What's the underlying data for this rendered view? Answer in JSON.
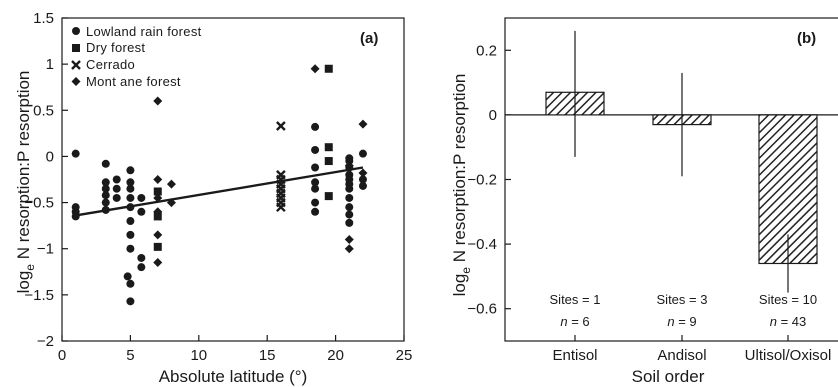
{
  "chart_data": [
    {
      "type": "scatter",
      "panel_label": "(a)",
      "xlabel": "Absolute latitude (°)",
      "ylabel": {
        "pre": "log",
        "sub": "e",
        "post": " N resorption:P resorption"
      },
      "xlim": [
        0,
        25
      ],
      "ylim": [
        -2,
        1.5
      ],
      "xticks": [
        "0",
        "5",
        "10",
        "15",
        "20",
        "25"
      ],
      "yticks": [
        "−2",
        "−1.5",
        "−1",
        "−0.5",
        "0",
        "0.5",
        "1",
        "1.5"
      ],
      "legend_position": "top-left",
      "series": [
        {
          "name": "Lowland rain forest",
          "marker": "circle",
          "points": [
            [
              1,
              0.03
            ],
            [
              1,
              -0.55
            ],
            [
              1,
              -0.6
            ],
            [
              1,
              -0.65
            ],
            [
              3.2,
              -0.08
            ],
            [
              3.2,
              -0.28
            ],
            [
              3.2,
              -0.35
            ],
            [
              3.2,
              -0.42
            ],
            [
              3.2,
              -0.5
            ],
            [
              3.2,
              -0.58
            ],
            [
              4,
              -0.25
            ],
            [
              4,
              -0.35
            ],
            [
              4,
              -0.45
            ],
            [
              5,
              -0.15
            ],
            [
              5,
              -0.28
            ],
            [
              5,
              -0.35
            ],
            [
              5,
              -0.45
            ],
            [
              5,
              -0.55
            ],
            [
              5,
              -0.7
            ],
            [
              5,
              -0.85
            ],
            [
              5,
              -1.0
            ],
            [
              4.8,
              -1.3
            ],
            [
              5,
              -1.38
            ],
            [
              5,
              -1.57
            ],
            [
              5.8,
              -0.45
            ],
            [
              5.8,
              -0.6
            ],
            [
              5.8,
              -1.1
            ],
            [
              5.8,
              -1.2
            ],
            [
              18.5,
              0.32
            ],
            [
              18.5,
              0.07
            ],
            [
              18.5,
              -0.12
            ],
            [
              18.5,
              -0.28
            ],
            [
              18.5,
              -0.35
            ],
            [
              18.5,
              -0.5
            ],
            [
              18.5,
              -0.6
            ],
            [
              21,
              -0.02
            ],
            [
              21,
              -0.05
            ],
            [
              21,
              -0.12
            ],
            [
              21,
              -0.2
            ],
            [
              21,
              -0.25
            ],
            [
              21,
              -0.3
            ],
            [
              21,
              -0.35
            ],
            [
              21,
              -0.45
            ],
            [
              21,
              -0.55
            ],
            [
              21,
              -0.63
            ],
            [
              21,
              -0.72
            ],
            [
              22,
              0.03
            ],
            [
              22,
              -0.25
            ],
            [
              22,
              -0.32
            ]
          ]
        },
        {
          "name": "Dry forest",
          "marker": "square",
          "points": [
            [
              7,
              -0.38
            ],
            [
              7,
              -0.65
            ],
            [
              7,
              -0.98
            ],
            [
              19.5,
              0.95
            ],
            [
              19.5,
              0.1
            ],
            [
              19.5,
              -0.05
            ],
            [
              19.5,
              -0.43
            ]
          ]
        },
        {
          "name": "Cerrado",
          "marker": "cross",
          "points": [
            [
              16,
              0.33
            ],
            [
              16,
              -0.2
            ],
            [
              16,
              -0.25
            ],
            [
              16,
              -0.3
            ],
            [
              16,
              -0.35
            ],
            [
              16,
              -0.4
            ],
            [
              16,
              -0.45
            ],
            [
              16,
              -0.5
            ],
            [
              16,
              -0.55
            ]
          ]
        },
        {
          "name": "Montane forest",
          "marker": "diamond",
          "points": [
            [
              7,
              0.6
            ],
            [
              7,
              -0.25
            ],
            [
              7,
              -0.45
            ],
            [
              7,
              -0.6
            ],
            [
              7,
              -0.85
            ],
            [
              7,
              -1.15
            ],
            [
              8,
              -0.3
            ],
            [
              8,
              -0.5
            ],
            [
              18.5,
              0.95
            ],
            [
              21,
              -0.1
            ],
            [
              21,
              -0.9
            ],
            [
              21,
              -1.0
            ],
            [
              22,
              0.35
            ],
            [
              22,
              -0.18
            ]
          ]
        }
      ],
      "regression_line": {
        "x": [
          1,
          22
        ],
        "y": [
          -0.64,
          -0.12
        ]
      }
    },
    {
      "type": "bar",
      "panel_label": "(b)",
      "xlabel": "Soil order",
      "ylabel": {
        "pre": "log",
        "sub": "e",
        "post": " N resorption:P resorption"
      },
      "ylim": [
        -0.7,
        0.3
      ],
      "yticks": [
        "−0.6",
        "−0.4",
        "−0.2",
        "0",
        "0.2"
      ],
      "categories": [
        "Entisol",
        "Andisol",
        "Ultisol/Oxisol"
      ],
      "values": [
        0.07,
        -0.03,
        -0.46
      ],
      "error_low": [
        -0.13,
        -0.19,
        -0.55
      ],
      "error_high": [
        0.26,
        0.13,
        -0.37
      ],
      "sites": [
        "Sites = 1",
        "Sites = 3",
        "Sites = 10"
      ],
      "n": [
        "6",
        "9",
        "43"
      ]
    }
  ],
  "legend_text": {
    "lowland": "Lowland rain forest",
    "dry": "Dry forest",
    "cerrado": "Cerrado",
    "montane": "Mont ane forest"
  }
}
